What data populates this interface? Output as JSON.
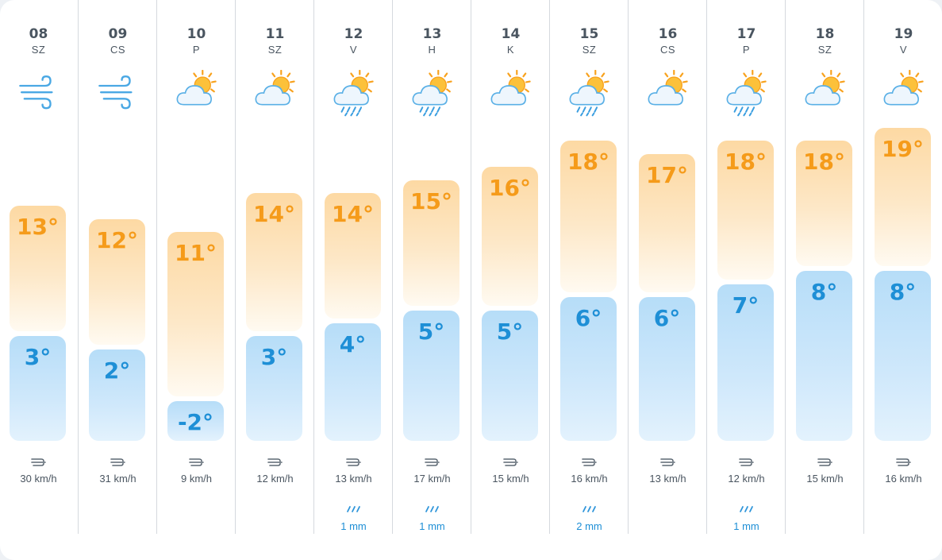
{
  "forecast": {
    "days": [
      {
        "date": "08",
        "weekday": "SZ",
        "icon": "wind-icon",
        "high": "13°",
        "low": "3°",
        "high_c": 13,
        "low_c": 3,
        "wind": "30 km/h",
        "rain": ""
      },
      {
        "date": "09",
        "weekday": "CS",
        "icon": "wind-icon",
        "high": "12°",
        "low": "2°",
        "high_c": 12,
        "low_c": 2,
        "wind": "31 km/h",
        "rain": ""
      },
      {
        "date": "10",
        "weekday": "P",
        "icon": "partly-cloudy-icon",
        "high": "11°",
        "low": "-2°",
        "high_c": 11,
        "low_c": -2,
        "wind": "9 km/h",
        "rain": ""
      },
      {
        "date": "11",
        "weekday": "SZ",
        "icon": "partly-cloudy-icon",
        "high": "14°",
        "low": "3°",
        "high_c": 14,
        "low_c": 3,
        "wind": "12 km/h",
        "rain": ""
      },
      {
        "date": "12",
        "weekday": "V",
        "icon": "sun-rain-cloud-icon",
        "high": "14°",
        "low": "4°",
        "high_c": 14,
        "low_c": 4,
        "wind": "13 km/h",
        "rain": "1 mm"
      },
      {
        "date": "13",
        "weekday": "H",
        "icon": "sun-rain-cloud-icon",
        "high": "15°",
        "low": "5°",
        "high_c": 15,
        "low_c": 5,
        "wind": "17 km/h",
        "rain": "1 mm"
      },
      {
        "date": "14",
        "weekday": "K",
        "icon": "partly-cloudy-icon",
        "high": "16°",
        "low": "5°",
        "high_c": 16,
        "low_c": 5,
        "wind": "15 km/h",
        "rain": ""
      },
      {
        "date": "15",
        "weekday": "SZ",
        "icon": "sun-rain-cloud-icon",
        "high": "18°",
        "low": "6°",
        "high_c": 18,
        "low_c": 6,
        "wind": "16 km/h",
        "rain": "2 mm"
      },
      {
        "date": "16",
        "weekday": "CS",
        "icon": "partly-cloudy-icon",
        "high": "17°",
        "low": "6°",
        "high_c": 17,
        "low_c": 6,
        "wind": "13 km/h",
        "rain": ""
      },
      {
        "date": "17",
        "weekday": "P",
        "icon": "sun-rain-cloud-icon",
        "high": "18°",
        "low": "7°",
        "high_c": 18,
        "low_c": 7,
        "wind": "12 km/h",
        "rain": "1 mm"
      },
      {
        "date": "18",
        "weekday": "SZ",
        "icon": "partly-cloudy-icon",
        "high": "18°",
        "low": "8°",
        "high_c": 18,
        "low_c": 8,
        "wind": "15 km/h",
        "rain": ""
      },
      {
        "date": "19",
        "weekday": "V",
        "icon": "partly-cloudy-icon",
        "high": "19°",
        "low": "8°",
        "high_c": 19,
        "low_c": 8,
        "wind": "16 km/h",
        "rain": ""
      }
    ],
    "colors": {
      "high": "#f59b1a",
      "low": "#1e8fd6",
      "text": "#4a5560",
      "divider": "#d5d9de"
    }
  }
}
